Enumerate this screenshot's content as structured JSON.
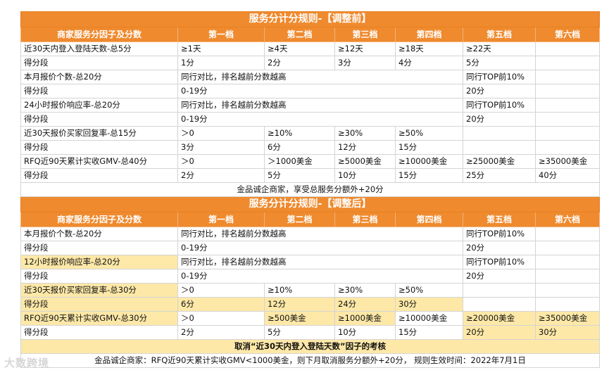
{
  "table_before": {
    "title": "服务分计分规则-【调整前】",
    "headers": [
      "商家服务分因子及分数",
      "第一档",
      "第二档",
      "第三档",
      "第四档",
      "第五档",
      "第六档"
    ],
    "rows": [
      [
        "近30天内登入登陆天数-总5分",
        "≥1天",
        "≥4天",
        "≥12天",
        "≥18天",
        "≥22天",
        ""
      ],
      [
        "得分段",
        "1分",
        "2分",
        "3分",
        "4分",
        "5分",
        ""
      ],
      [
        "本月报价个数-总20分",
        "同行对比，排名越前分数越高",
        "",
        "",
        "",
        "同行TOP前10%",
        ""
      ],
      [
        "得分段",
        "0-19分",
        "",
        "",
        "",
        "20分",
        ""
      ],
      [
        "24小时报价响应率-总20分",
        "同行对比，排名越前分数越高",
        "",
        "",
        "",
        "同行TOP前10%",
        ""
      ],
      [
        "得分段",
        "0-19分",
        "",
        "",
        "",
        "20分",
        ""
      ],
      [
        "近30天报价买家回复率-总15分",
        "＞0",
        "≥10%",
        "≥30%",
        "≥50%",
        "",
        ""
      ],
      [
        "得分段",
        "3分",
        "6分",
        "12分",
        "15分",
        "",
        ""
      ],
      [
        "RFQ近90天累计实收GMV-总40分",
        "＞0",
        "＞1000美金",
        "≥5000美金",
        "≥10000美金",
        "≥25000美金",
        "≥35000美金"
      ],
      [
        "得分段",
        "2分",
        "5分",
        "10分",
        "15分",
        "25分",
        "40分"
      ]
    ],
    "footnote": "金品诚企商家，享受总服务分额外+20分"
  },
  "table_after": {
    "title": "服务分计分规则-【调整后】",
    "headers": [
      "商家服务分因子及分数",
      "第一档",
      "第二档",
      "第三档",
      "第四档",
      "第五档",
      "第六档"
    ],
    "rows": [
      [
        "本月报价个数-总20分",
        "同行对比，排名越前分数越高",
        "",
        "",
        "",
        "同行TOP前10%",
        ""
      ],
      [
        "得分段",
        "0-19分",
        "",
        "",
        "",
        "20分",
        ""
      ],
      [
        "12小时报价响应率-总20分",
        "同行对比，排名越前分数越高",
        "",
        "",
        "",
        "同行TOP前10%",
        ""
      ],
      [
        "得分段",
        "0-19分",
        "",
        "",
        "",
        "20分",
        ""
      ],
      [
        "近30天报价买家回复率-总30分",
        "＞0",
        "≥10%",
        "≥30%",
        "≥50%",
        "",
        ""
      ],
      [
        "得分段",
        "6分",
        "12分",
        "24分",
        "30分",
        "",
        ""
      ],
      [
        "RFQ近90天累计实收GMV-总30分",
        "＞0",
        "≥500美金",
        "≥1000美金",
        "≥10000美金",
        "≥20000美金",
        "≥35000美金"
      ],
      [
        "得分段",
        "2分",
        "5分",
        "10分",
        "15分",
        "20分",
        "30分"
      ]
    ],
    "note_cancel": "取消“近30天内登入登陆天数”因子的考核",
    "note_bottom": "金品诚企商家：RFQ近90天累计实收GMV<1000美金，则下月取消服务分额外+20分， 规则生效时间：2022年7月1日"
  },
  "watermark": "大数跨境",
  "colors": {
    "header_orange": "#ef8a2e",
    "highlight_yellow": "#fde8a8"
  }
}
